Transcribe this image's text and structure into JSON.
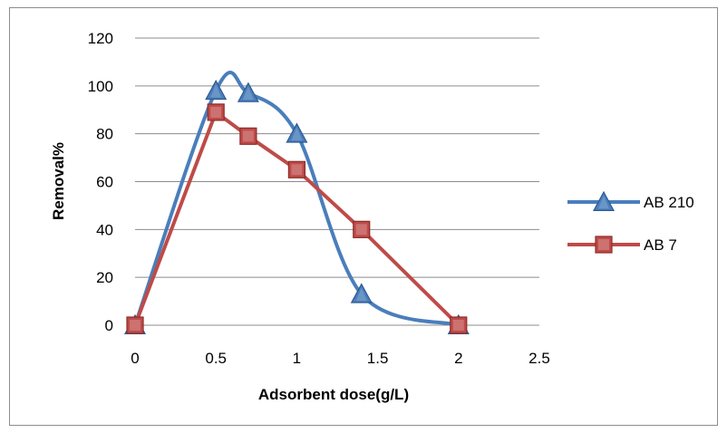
{
  "chart_data": {
    "type": "line",
    "xlabel": "Adsorbent dose(g/L)",
    "ylabel": "Removal%",
    "xlim": [
      0,
      2.5
    ],
    "ylim": [
      0,
      120
    ],
    "x_ticks": [
      "0",
      "0.5",
      "1",
      "1.5",
      "2",
      "2.5"
    ],
    "y_ticks": [
      "0",
      "20",
      "40",
      "60",
      "80",
      "100",
      "120"
    ],
    "grid": "horizontal",
    "legend_position": "right",
    "series": [
      {
        "name": "AB 210",
        "color": "#4a7ebb",
        "marker": "triangle",
        "smooth": true,
        "x": [
          0,
          0.5,
          0.7,
          1.0,
          1.4,
          2.0
        ],
        "y": [
          0,
          98,
          97,
          80,
          13,
          0
        ]
      },
      {
        "name": "AB 7",
        "color": "#be4b48",
        "marker": "square",
        "smooth": false,
        "x": [
          0,
          0.5,
          0.7,
          1.0,
          1.4,
          2.0
        ],
        "y": [
          0,
          89,
          79,
          65,
          40,
          0
        ]
      }
    ]
  }
}
